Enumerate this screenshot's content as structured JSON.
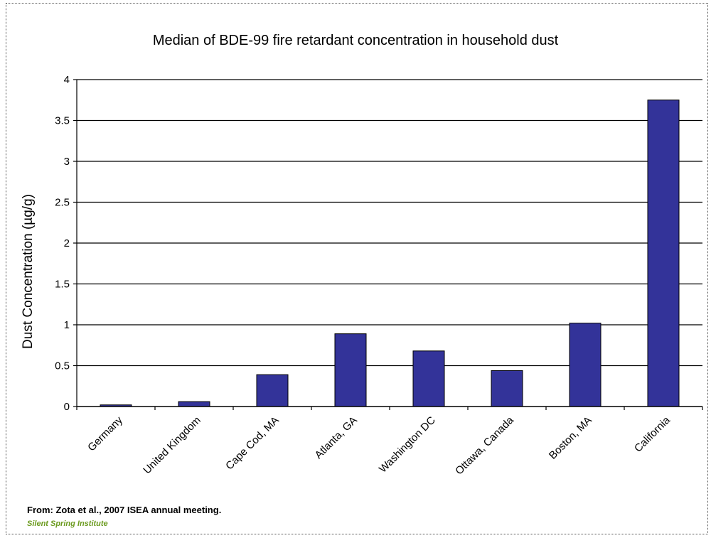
{
  "chart_data": {
    "type": "bar",
    "title": "Median of BDE-99 fire retardant concentration in  household dust",
    "ylabel": "Dust Concentration (µg/g)",
    "xlabel": "",
    "categories": [
      "Germany",
      "United Kingdom",
      "Cape Cod, MA",
      "Atlanta, GA",
      "Washington DC",
      "Ottawa, Canada",
      "Boston, MA",
      "California"
    ],
    "values": [
      0.02,
      0.06,
      0.39,
      0.89,
      0.68,
      0.44,
      1.02,
      3.75
    ],
    "ylim": [
      0,
      4
    ],
    "yticks": [
      0,
      0.5,
      1,
      1.5,
      2,
      2.5,
      3,
      3.5,
      4
    ],
    "ytick_labels": [
      "0",
      "0.5",
      "1",
      "1.5",
      "2",
      "2.5",
      "3",
      "3.5",
      "4"
    ],
    "grid": true,
    "legend": "none",
    "bar_color": "#333399"
  },
  "source": {
    "citation": "From: Zota et al., 2007 ISEA annual meeting.",
    "org": "Silent Spring Institute"
  }
}
